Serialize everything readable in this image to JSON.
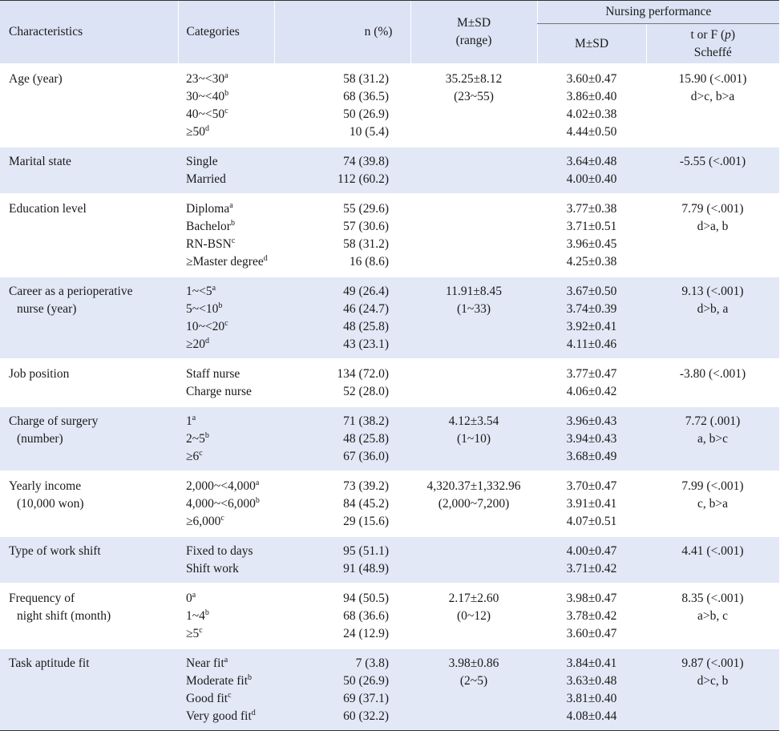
{
  "header": {
    "characteristics": "Characteristics",
    "categories": "Categories",
    "n_pct": "n (%)",
    "msd": "M±SD",
    "range": "(range)",
    "nursing_performance": "Nursing performance",
    "np_msd": "M±SD",
    "t_or_f_pre": "t or F (",
    "t_or_f_p": "p",
    "t_or_f_post": ")",
    "scheffe": "Scheffé"
  },
  "rows": [
    {
      "characteristic": [
        "Age (year)"
      ],
      "categories": [
        {
          "text": "23~<30",
          "sup": "a"
        },
        {
          "text": "30~<40",
          "sup": "b"
        },
        {
          "text": "40~<50",
          "sup": "c"
        },
        {
          "text": "≥50",
          "sup": "d"
        }
      ],
      "n": [
        "58 (31.2)",
        "68 (36.5)",
        "50 (26.9)",
        "10 (5.4)"
      ],
      "msd": [
        "35.25±8.12",
        "(23~55)"
      ],
      "np": [
        "3.60±0.47",
        "3.86±0.40",
        "4.02±0.38",
        "4.44±0.50"
      ],
      "test": [
        "15.90 (<.001)",
        "d>c, b>a"
      ]
    },
    {
      "characteristic": [
        "Marital state"
      ],
      "categories": [
        {
          "text": "Single",
          "sup": ""
        },
        {
          "text": "Married",
          "sup": ""
        }
      ],
      "n": [
        "74 (39.8)",
        "112 (60.2)"
      ],
      "msd": [],
      "np": [
        "3.64±0.48",
        "4.00±0.40"
      ],
      "test": [
        "-5.55 (<.001)"
      ]
    },
    {
      "characteristic": [
        "Education level"
      ],
      "categories": [
        {
          "text": "Diploma",
          "sup": "a"
        },
        {
          "text": "Bachelor",
          "sup": "b"
        },
        {
          "text": "RN-BSN",
          "sup": "c"
        },
        {
          "text": "≥Master degree",
          "sup": "d"
        }
      ],
      "n": [
        "55 (29.6)",
        "57 (30.6)",
        "58 (31.2)",
        "16 (8.6)"
      ],
      "msd": [],
      "np": [
        "3.77±0.38",
        "3.71±0.51",
        "3.96±0.45",
        "4.25±0.38"
      ],
      "test": [
        "7.79 (<.001)",
        "d>a, b"
      ]
    },
    {
      "characteristic": [
        "Career as a perioperative",
        "nurse (year)"
      ],
      "categories": [
        {
          "text": "1~<5",
          "sup": "a"
        },
        {
          "text": "5~<10",
          "sup": "b"
        },
        {
          "text": "10~<20",
          "sup": "c"
        },
        {
          "text": "≥20",
          "sup": "d"
        }
      ],
      "n": [
        "49 (26.4)",
        "46 (24.7)",
        "48 (25.8)",
        "43 (23.1)"
      ],
      "msd": [
        "11.91±8.45",
        "(1~33)"
      ],
      "np": [
        "3.67±0.50",
        "3.74±0.39",
        "3.92±0.41",
        "4.11±0.46"
      ],
      "test": [
        "9.13 (<.001)",
        "d>b, a"
      ]
    },
    {
      "characteristic": [
        "Job position"
      ],
      "categories": [
        {
          "text": "Staff nurse",
          "sup": ""
        },
        {
          "text": "Charge nurse",
          "sup": ""
        }
      ],
      "n": [
        "134 (72.0)",
        "52 (28.0)"
      ],
      "msd": [],
      "np": [
        "3.77±0.47",
        "4.06±0.42"
      ],
      "test": [
        "-3.80 (<.001)"
      ]
    },
    {
      "characteristic": [
        "Charge of surgery",
        "(number)"
      ],
      "categories": [
        {
          "text": "1",
          "sup": "a"
        },
        {
          "text": "2~5",
          "sup": "b"
        },
        {
          "text": "≥6",
          "sup": "c"
        }
      ],
      "n": [
        "71 (38.2)",
        "48 (25.8)",
        "67 (36.0)"
      ],
      "msd": [
        "4.12±3.54",
        "(1~10)"
      ],
      "np": [
        "3.96±0.43",
        "3.94±0.43",
        "3.68±0.49"
      ],
      "test": [
        "7.72 (.001)",
        "a, b>c"
      ]
    },
    {
      "characteristic": [
        "Yearly income",
        "(10,000 won)"
      ],
      "categories": [
        {
          "text": "2,000~<4,000",
          "sup": "a"
        },
        {
          "text": "4,000~<6,000",
          "sup": "b"
        },
        {
          "text": "≥6,000",
          "sup": "c"
        }
      ],
      "n": [
        "73 (39.2)",
        "84 (45.2)",
        "29 (15.6)"
      ],
      "msd": [
        "4,320.37±1,332.96",
        "(2,000~7,200)"
      ],
      "np": [
        "3.70±0.47",
        "3.91±0.41",
        "4.07±0.51"
      ],
      "test": [
        "7.99 (<.001)",
        "c, b>a"
      ]
    },
    {
      "characteristic": [
        "Type of work shift"
      ],
      "categories": [
        {
          "text": "Fixed to days",
          "sup": ""
        },
        {
          "text": "Shift work",
          "sup": ""
        }
      ],
      "n": [
        "95 (51.1)",
        "91 (48.9)"
      ],
      "msd": [],
      "np": [
        "4.00±0.47",
        "3.71±0.42"
      ],
      "test": [
        "4.41 (<.001)"
      ]
    },
    {
      "characteristic": [
        "Frequency of",
        "night shift (month)"
      ],
      "categories": [
        {
          "text": "0",
          "sup": "a"
        },
        {
          "text": "1~4",
          "sup": "b"
        },
        {
          "text": "≥5",
          "sup": "c"
        }
      ],
      "n": [
        "94 (50.5)",
        "68 (36.6)",
        "24 (12.9)"
      ],
      "msd": [
        "2.17±2.60",
        "(0~12)"
      ],
      "np": [
        "3.98±0.47",
        "3.78±0.42",
        "3.60±0.47"
      ],
      "test": [
        "8.35 (<.001)",
        "a>b, c"
      ]
    },
    {
      "characteristic": [
        "Task aptitude fit"
      ],
      "categories": [
        {
          "text": "Near fit",
          "sup": "a"
        },
        {
          "text": "Moderate fit",
          "sup": "b"
        },
        {
          "text": "Good fit",
          "sup": "c"
        },
        {
          "text": "Very good fit",
          "sup": "d"
        }
      ],
      "n": [
        "7 (3.8)",
        "50 (26.9)",
        "69 (37.1)",
        "60 (32.2)"
      ],
      "msd": [
        "3.98±0.86",
        "(2~5)"
      ],
      "np": [
        "3.84±0.41",
        "3.63±0.48",
        "3.81±0.40",
        "4.08±0.44"
      ],
      "test": [
        "9.87 (<.001)",
        "d>c, b"
      ]
    }
  ]
}
